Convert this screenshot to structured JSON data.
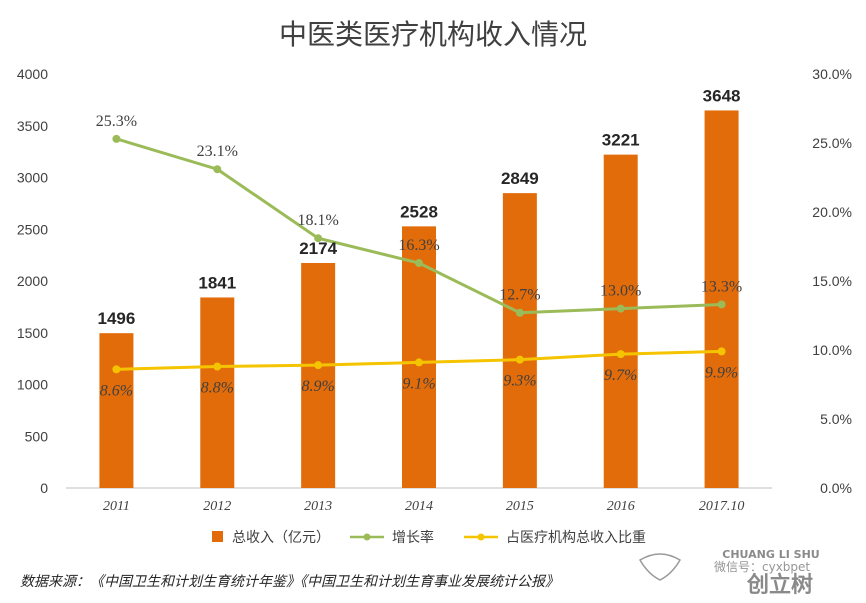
{
  "chart_data": {
    "type": "bar",
    "title": "中医类医疗机构收入情况",
    "categories": [
      "2011",
      "2012",
      "2013",
      "2014",
      "2015",
      "2016",
      "2017.10"
    ],
    "ylim": [
      0,
      4000
    ],
    "yticks": [
      "0",
      "500",
      "1000",
      "1500",
      "2000",
      "2500",
      "3000",
      "3500",
      "4000"
    ],
    "y2lim": [
      0,
      30
    ],
    "y2ticks": [
      "0.0%",
      "5.0%",
      "10.0%",
      "15.0%",
      "20.0%",
      "25.0%",
      "30.0%"
    ],
    "series": [
      {
        "name": "总收入（亿元）",
        "type": "bar",
        "axis": "left",
        "color": "#e36c0a",
        "values": [
          1496,
          1841,
          2174,
          2528,
          2849,
          3221,
          3648
        ],
        "labels": [
          "1496",
          "1841",
          "2174",
          "2528",
          "2849",
          "3221",
          "3648"
        ]
      },
      {
        "name": "增长率",
        "type": "line",
        "axis": "right",
        "color": "#9bbb59",
        "values": [
          25.3,
          23.1,
          18.1,
          16.3,
          12.7,
          13.0,
          13.3
        ],
        "labels": [
          "25.3%",
          "23.1%",
          "18.1%",
          "16.3%",
          "12.7%",
          "13.0%",
          "13.3%"
        ]
      },
      {
        "name": "占医疗机构总收入比重",
        "type": "line",
        "axis": "right",
        "color": "#f5c400",
        "values": [
          8.6,
          8.8,
          8.9,
          9.1,
          9.3,
          9.7,
          9.9
        ],
        "labels": [
          "8.6%",
          "8.8%",
          "8.9%",
          "9.1%",
          "9.3%",
          "9.7%",
          "9.9%"
        ]
      }
    ],
    "legend_position": "bottom",
    "grid": false
  },
  "source_note": "数据来源：《中国卫生和计划生育统计年鉴》《中国卫生和计划生育事业发展统计公报》",
  "watermark": {
    "top": "CHUANG LI SHU",
    "bottom": "创立树",
    "overlay": "微信号：cyxbpet"
  }
}
